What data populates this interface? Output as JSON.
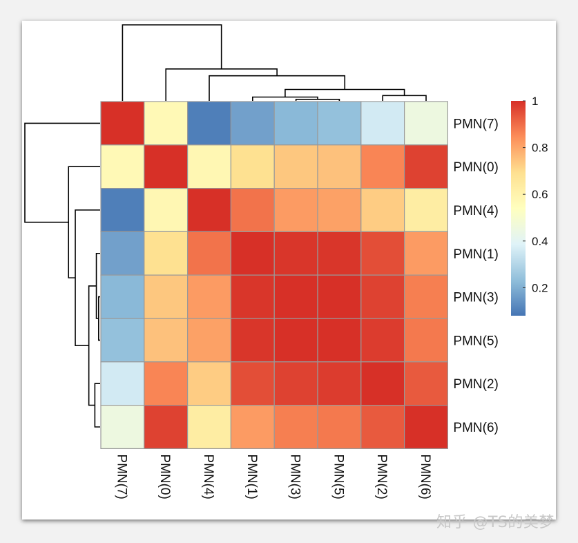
{
  "chart_data": {
    "type": "heatmap",
    "title": "",
    "rows": [
      "PMN(7)",
      "PMN(0)",
      "PMN(4)",
      "PMN(1)",
      "PMN(3)",
      "PMN(5)",
      "PMN(2)",
      "PMN(6)"
    ],
    "columns": [
      "PMN(7)",
      "PMN(0)",
      "PMN(4)",
      "PMN(1)",
      "PMN(3)",
      "PMN(5)",
      "PMN(2)",
      "PMN(6)"
    ],
    "values": [
      [
        1.0,
        0.57,
        0.1,
        0.17,
        0.22,
        0.24,
        0.36,
        0.45
      ],
      [
        0.57,
        1.0,
        0.58,
        0.69,
        0.74,
        0.75,
        0.86,
        0.97
      ],
      [
        0.1,
        0.58,
        1.0,
        0.89,
        0.82,
        0.81,
        0.73,
        0.63
      ],
      [
        0.17,
        0.69,
        0.89,
        1.0,
        0.99,
        0.99,
        0.95,
        0.82
      ],
      [
        0.22,
        0.74,
        0.82,
        0.99,
        1.0,
        1.0,
        0.97,
        0.87
      ],
      [
        0.24,
        0.75,
        0.81,
        0.99,
        1.0,
        1.0,
        0.98,
        0.88
      ],
      [
        0.36,
        0.86,
        0.73,
        0.95,
        0.97,
        0.98,
        1.0,
        0.93
      ],
      [
        0.45,
        0.97,
        0.63,
        0.82,
        0.87,
        0.88,
        0.93,
        1.0
      ]
    ],
    "color_range": [
      0.08,
      1.0
    ],
    "color_scale": [
      "#4575b4",
      "#91bfdb",
      "#e0f3f8",
      "#ffffbf",
      "#fee090",
      "#fc8d59",
      "#d73027"
    ],
    "grid_color": "#999999",
    "legend": {
      "ticks": [
        1,
        0.8,
        0.6,
        0.4,
        0.2
      ],
      "tick_labels": [
        "1",
        "0.8",
        "0.6",
        "0.4",
        "0.2"
      ],
      "placement": "right"
    },
    "dendrogram": {
      "order": [
        7,
        0,
        4,
        1,
        3,
        5,
        2,
        6
      ],
      "merges": [
        {
          "a": 3,
          "b": 5,
          "height": 0.02
        },
        {
          "a": 1,
          "b": "3+5",
          "height": 0.05
        },
        {
          "a": 2,
          "b": 6,
          "height": 0.07
        },
        {
          "a": "1+3+5",
          "b": "2+6",
          "height": 0.15
        },
        {
          "a": 4,
          "b": "1+3+5+2+6",
          "height": 0.33
        },
        {
          "a": 0,
          "b": "4+1+3+5+2+6",
          "height": 0.42
        },
        {
          "a": 7,
          "b": "0+4+1+3+5+2+6",
          "height": 1.0
        }
      ]
    }
  },
  "watermark": {
    "text": "知乎 @TS的美梦"
  }
}
